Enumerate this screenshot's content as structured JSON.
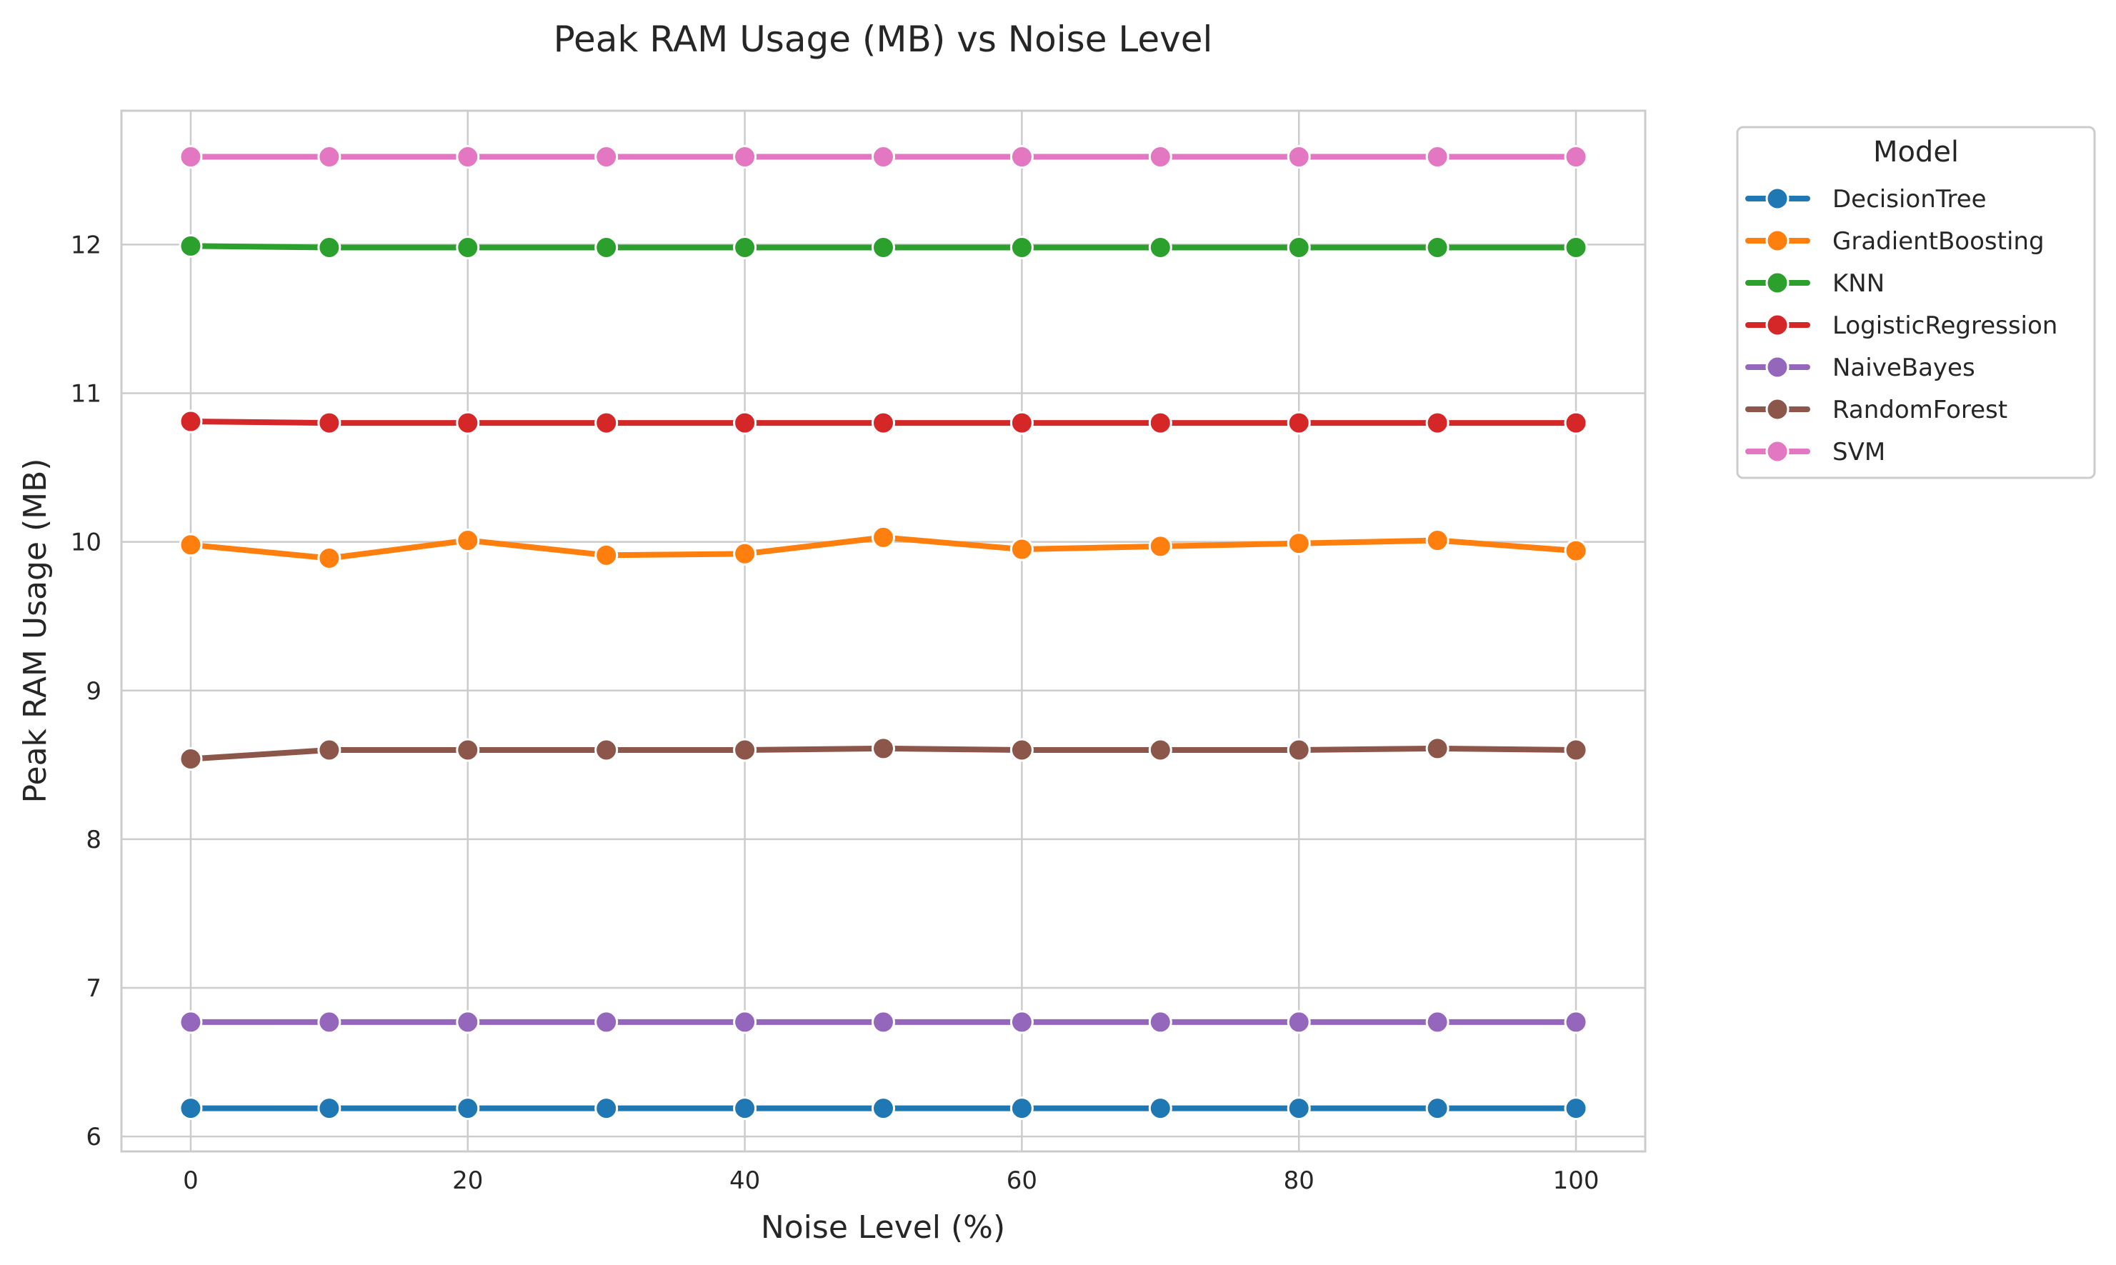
{
  "chart_data": {
    "type": "line",
    "title": "Peak RAM Usage (MB) vs Noise Level",
    "xlabel": "Noise Level (%)",
    "ylabel": "Peak RAM Usage (MB)",
    "x": [
      0,
      10,
      20,
      30,
      40,
      50,
      60,
      70,
      80,
      90,
      100
    ],
    "xlim": [
      -5,
      105
    ],
    "ylim": [
      5.9,
      12.9
    ],
    "x_ticks": [
      0,
      20,
      40,
      60,
      80,
      100
    ],
    "y_ticks": [
      6,
      7,
      8,
      9,
      10,
      11,
      12
    ],
    "grid": true,
    "legend": {
      "title": "Model",
      "placement": "outside-top-right"
    },
    "series": [
      {
        "name": "DecisionTree",
        "color": "#1f77b4",
        "values": [
          6.19,
          6.19,
          6.19,
          6.19,
          6.19,
          6.19,
          6.19,
          6.19,
          6.19,
          6.19,
          6.19
        ]
      },
      {
        "name": "GradientBoosting",
        "color": "#ff7f0e",
        "values": [
          9.98,
          9.89,
          10.01,
          9.91,
          9.92,
          10.03,
          9.95,
          9.97,
          9.99,
          10.01,
          9.94
        ]
      },
      {
        "name": "KNN",
        "color": "#2ca02c",
        "values": [
          11.99,
          11.98,
          11.98,
          11.98,
          11.98,
          11.98,
          11.98,
          11.98,
          11.98,
          11.98,
          11.98
        ]
      },
      {
        "name": "LogisticRegression",
        "color": "#d62728",
        "values": [
          10.81,
          10.8,
          10.8,
          10.8,
          10.8,
          10.8,
          10.8,
          10.8,
          10.8,
          10.8,
          10.8
        ]
      },
      {
        "name": "NaiveBayes",
        "color": "#9467bd",
        "values": [
          6.77,
          6.77,
          6.77,
          6.77,
          6.77,
          6.77,
          6.77,
          6.77,
          6.77,
          6.77,
          6.77
        ]
      },
      {
        "name": "RandomForest",
        "color": "#8c564b",
        "values": [
          8.54,
          8.6,
          8.6,
          8.6,
          8.6,
          8.61,
          8.6,
          8.6,
          8.6,
          8.61,
          8.6
        ]
      },
      {
        "name": "SVM",
        "color": "#e377c2",
        "values": [
          12.59,
          12.59,
          12.59,
          12.59,
          12.59,
          12.59,
          12.59,
          12.59,
          12.59,
          12.59,
          12.59
        ]
      }
    ]
  }
}
